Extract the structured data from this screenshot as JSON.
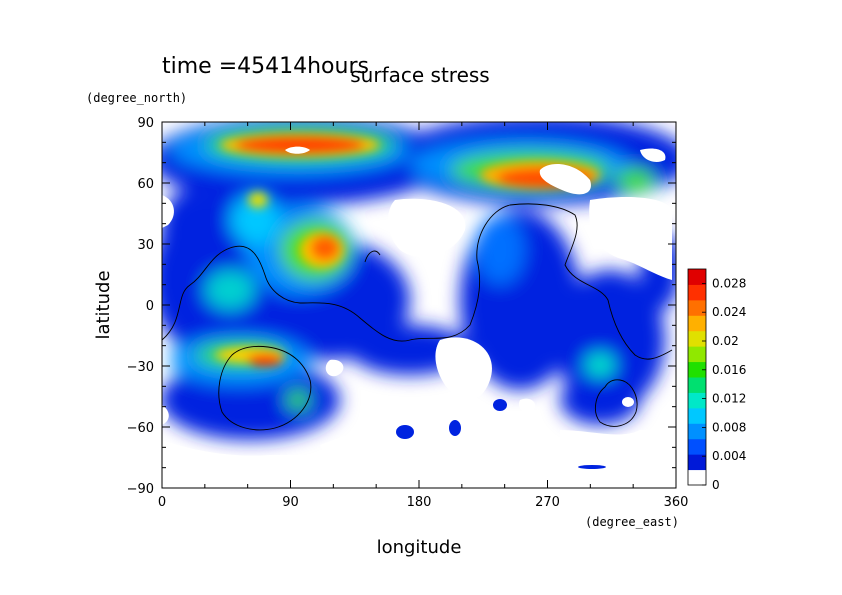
{
  "chart_data": {
    "type": "heatmap",
    "time_label": "time =45414hours",
    "title": "surface stress",
    "xlabel": "longitude",
    "ylabel": "latitude",
    "x_unit": "(degree_east)",
    "y_unit": "(degree_north)",
    "xlim": [
      0,
      360
    ],
    "ylim": [
      -90,
      90
    ],
    "x_ticks": [
      0,
      90,
      180,
      270,
      360
    ],
    "y_ticks": [
      -90,
      -60,
      -30,
      0,
      30,
      60,
      90
    ],
    "x_tick_labels": [
      "0",
      "90",
      "180",
      "270",
      "360"
    ],
    "y_tick_labels": [
      "−90",
      "−60",
      "−30",
      "0",
      "30",
      "60",
      "90"
    ],
    "colorbar": {
      "min": 0,
      "max": 0.03,
      "tick_values": [
        0,
        0.004,
        0.008,
        0.012,
        0.016,
        0.02,
        0.024,
        0.028
      ],
      "tick_labels": [
        "0",
        "0.004",
        "0.008",
        "0.012",
        "0.016",
        "0.02",
        "0.024",
        "0.028"
      ],
      "colors": [
        "#ffffff",
        "#0019d8",
        "#0050ff",
        "#0090ff",
        "#00c8ff",
        "#00e8c8",
        "#00e070",
        "#20e000",
        "#90e800",
        "#e0e000",
        "#ffb000",
        "#ff7000",
        "#ff3000",
        "#e00000"
      ]
    },
    "features": [
      {
        "lon": 100,
        "lat": 72,
        "dlon": 70,
        "dlat": 10,
        "value": 0.027
      },
      {
        "lon": 50,
        "lat": 70,
        "dlon": 25,
        "dlat": 9,
        "value": 0.018
      },
      {
        "lon": 265,
        "lat": 65,
        "dlon": 45,
        "dlat": 12,
        "value": 0.024
      },
      {
        "lon": 210,
        "lat": 70,
        "dlon": 35,
        "dlat": 8,
        "value": 0.014
      },
      {
        "lon": 120,
        "lat": 25,
        "dlon": 18,
        "dlat": 12,
        "value": 0.022
      },
      {
        "lon": 90,
        "lat": 40,
        "dlon": 20,
        "dlat": 15,
        "value": 0.012
      },
      {
        "lon": 60,
        "lat": -30,
        "dlon": 30,
        "dlat": 7,
        "value": 0.018
      },
      {
        "lon": 90,
        "lat": -47,
        "dlon": 10,
        "dlat": 8,
        "value": 0.016
      },
      {
        "lon": 60,
        "lat": 10,
        "dlon": 25,
        "dlat": 15,
        "value": 0.01
      },
      {
        "lon": 240,
        "lat": 15,
        "dlon": 25,
        "dlat": 15,
        "value": 0.008
      },
      {
        "lon": 320,
        "lat": -30,
        "dlon": 20,
        "dlat": 12,
        "value": 0.008
      },
      {
        "lon": 180,
        "lat": -20,
        "dlon": 40,
        "dlat": 15,
        "value": 0.006
      }
    ]
  }
}
